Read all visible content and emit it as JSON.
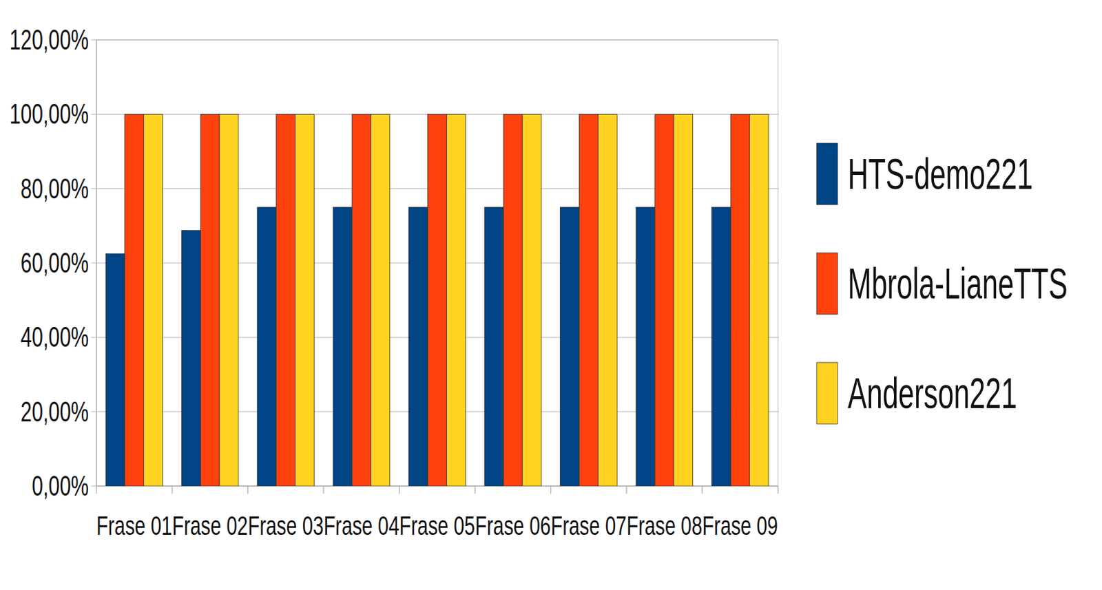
{
  "chart_data": {
    "type": "bar",
    "categories": [
      "Frase 01",
      "Frase 02",
      "Frase 03",
      "Frase 04",
      "Frase 05",
      "Frase 06",
      "Frase 07",
      "Frase 08",
      "Frase 09"
    ],
    "series": [
      {
        "name": "HTS-demo221",
        "color": "#004586",
        "values": [
          62.5,
          68.75,
          75,
          75,
          75,
          75,
          75,
          75,
          75
        ]
      },
      {
        "name": "Mbrola-LianeTTS",
        "color": "#ff420e",
        "values": [
          100,
          100,
          100,
          100,
          100,
          100,
          100,
          100,
          100
        ]
      },
      {
        "name": "Anderson221",
        "color": "#ffd320",
        "values": [
          100,
          100,
          100,
          100,
          100,
          100,
          100,
          100,
          100
        ]
      }
    ],
    "ylim": [
      0,
      120
    ],
    "yticks": [
      {
        "value": 0,
        "label": "0,00%"
      },
      {
        "value": 20,
        "label": "20,00%"
      },
      {
        "value": 40,
        "label": "40,00%"
      },
      {
        "value": 60,
        "label": "60,00%"
      },
      {
        "value": 80,
        "label": "80,00%"
      },
      {
        "value": 100,
        "label": "100,00%"
      },
      {
        "value": 120,
        "label": "120,00%"
      }
    ],
    "grid": true,
    "legend": "right"
  }
}
